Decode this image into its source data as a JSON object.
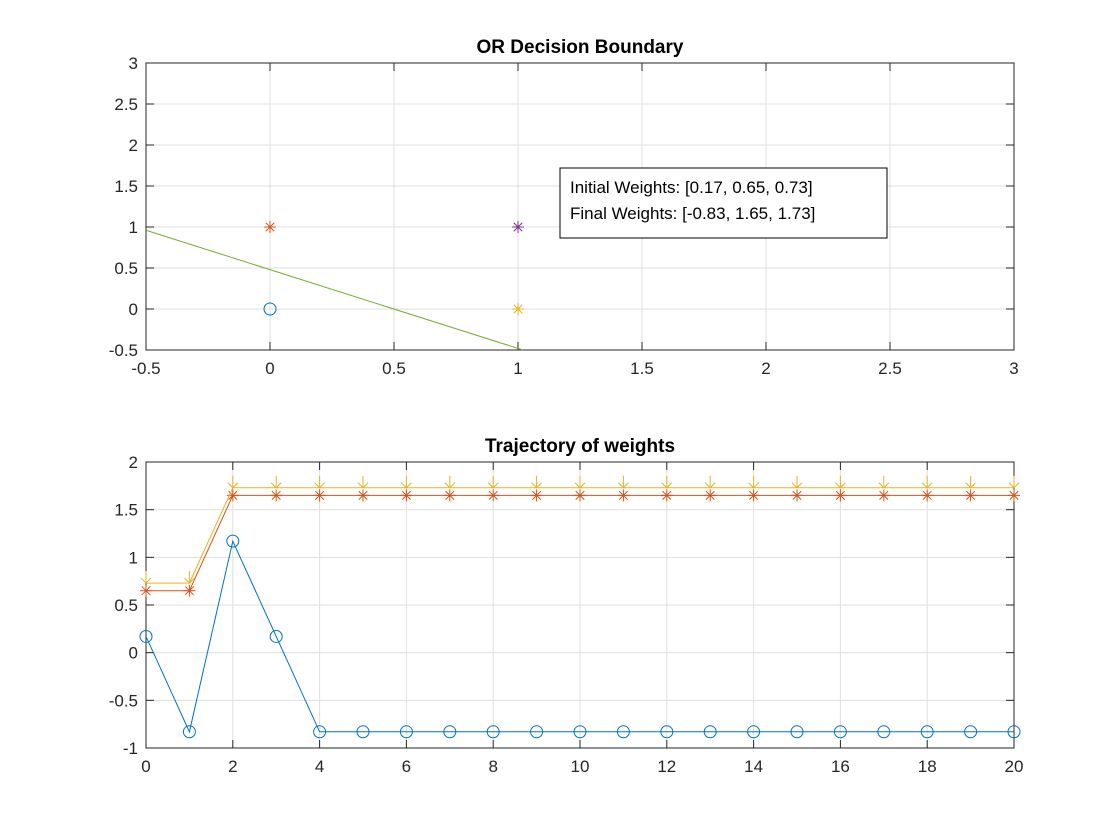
{
  "chart_data": [
    {
      "type": "scatter",
      "title": "OR Decision Boundary",
      "xlabel": "",
      "ylabel": "",
      "xlim": [
        -0.5,
        3
      ],
      "ylim": [
        -0.5,
        3
      ],
      "xticks": [
        "-0.5",
        "0",
        "0.5",
        "1",
        "1.5",
        "2",
        "2.5",
        "3"
      ],
      "yticks": [
        "-0.5",
        "0",
        "0.5",
        "1",
        "1.5",
        "2",
        "2.5",
        "3"
      ],
      "grid": true,
      "points": [
        {
          "x": 0,
          "y": 0,
          "marker": "circle",
          "color": "#0072BD"
        },
        {
          "x": 0,
          "y": 1,
          "marker": "asterisk",
          "color": "#D95319"
        },
        {
          "x": 1,
          "y": 0,
          "marker": "asterisk",
          "color": "#EDB120"
        },
        {
          "x": 1,
          "y": 1,
          "marker": "asterisk",
          "color": "#7E2F8E"
        }
      ],
      "boundary_line": {
        "color": "#77AC30",
        "points": [
          [
            -0.5,
            0.96
          ],
          [
            1.02,
            -0.5
          ]
        ]
      },
      "annotation": {
        "lines": [
          "Initial Weights: [0.17, 0.65, 0.73]",
          "Final Weights: [-0.83, 1.65, 1.73]"
        ],
        "position": "upper-right"
      }
    },
    {
      "type": "line",
      "title": "Trajectory of weights",
      "xlabel": "",
      "ylabel": "",
      "xlim": [
        0,
        20
      ],
      "ylim": [
        -1,
        2
      ],
      "xticks": [
        "0",
        "2",
        "4",
        "6",
        "8",
        "10",
        "12",
        "14",
        "16",
        "18",
        "20"
      ],
      "yticks": [
        "-1",
        "-0.5",
        "0",
        "0.5",
        "1",
        "1.5",
        "2"
      ],
      "grid": true,
      "x": [
        0,
        1,
        2,
        3,
        4,
        5,
        6,
        7,
        8,
        9,
        10,
        11,
        12,
        13,
        14,
        15,
        16,
        17,
        18,
        19,
        20
      ],
      "series": [
        {
          "color": "#0072BD",
          "marker": "circle",
          "values": [
            0.17,
            -0.83,
            1.17,
            0.17,
            -0.83,
            -0.83,
            -0.83,
            -0.83,
            -0.83,
            -0.83,
            -0.83,
            -0.83,
            -0.83,
            -0.83,
            -0.83,
            -0.83,
            -0.83,
            -0.83,
            -0.83,
            -0.83,
            -0.83
          ]
        },
        {
          "color": "#D95319",
          "marker": "asterisk",
          "values": [
            0.65,
            0.65,
            1.65,
            1.65,
            1.65,
            1.65,
            1.65,
            1.65,
            1.65,
            1.65,
            1.65,
            1.65,
            1.65,
            1.65,
            1.65,
            1.65,
            1.65,
            1.65,
            1.65,
            1.65,
            1.65
          ]
        },
        {
          "color": "#EDB120",
          "marker": "down-arrow",
          "values": [
            0.73,
            0.73,
            1.73,
            1.73,
            1.73,
            1.73,
            1.73,
            1.73,
            1.73,
            1.73,
            1.73,
            1.73,
            1.73,
            1.73,
            1.73,
            1.73,
            1.73,
            1.73,
            1.73,
            1.73,
            1.73
          ]
        }
      ]
    }
  ]
}
